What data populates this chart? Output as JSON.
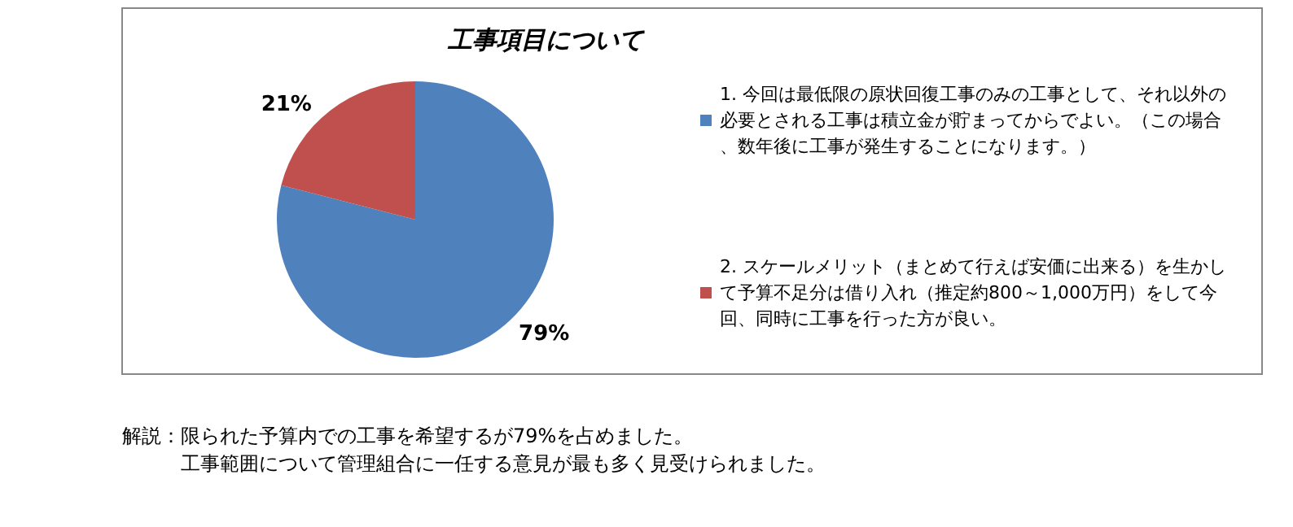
{
  "chart_data": {
    "type": "pie",
    "title": "工事項目について",
    "categories": [
      "1. 今回は最低限の原状回復工事のみの工事として、それ以外の必要とされる工事は積立金が貯まってからでよい。（この場合、数年後に工事が発生することになります。）",
      "2. スケールメリット（まとめて行えば安価に出来る）を生かして予算不足分は借り入れ（推定約800～1,000万円）をして今回、同時に工事を行った方が良い。"
    ],
    "values": [
      79,
      21
    ],
    "colors": [
      "#4f81bd",
      "#c0504d"
    ],
    "value_labels": [
      "79%",
      "21%"
    ],
    "legend": "right",
    "annotations": [
      "解説：限られた予算内での工事を希望するが79%を占めました。",
      "工事範囲について管理組合に一任する意見が最も多く見受けられました。"
    ]
  }
}
